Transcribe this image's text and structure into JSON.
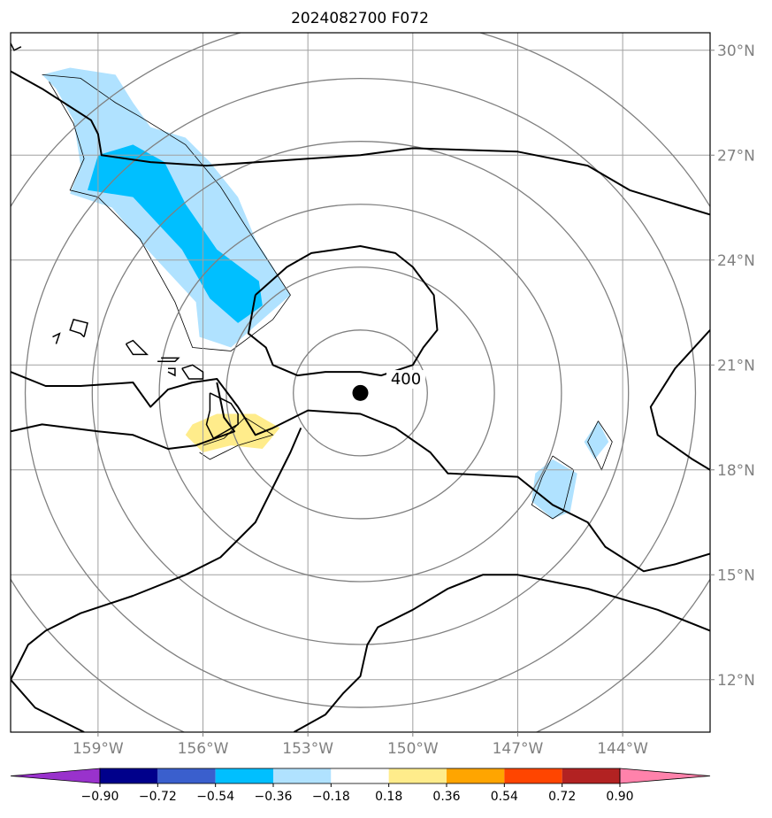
{
  "chart_data": {
    "type": "contour map",
    "title": "2024082700 F072",
    "xlim": [
      -161.5,
      -141.5
    ],
    "ylim": [
      10.5,
      30.5
    ],
    "grid": true,
    "x_ticks": [
      {
        "value": -159,
        "label": "159°W"
      },
      {
        "value": -156,
        "label": "156°W"
      },
      {
        "value": -153,
        "label": "153°W"
      },
      {
        "value": -150,
        "label": "150°W"
      },
      {
        "value": -147,
        "label": "147°W"
      },
      {
        "value": -144,
        "label": "144°W"
      }
    ],
    "y_ticks": [
      {
        "value": 12,
        "label": "12°N"
      },
      {
        "value": 15,
        "label": "15°N"
      },
      {
        "value": 18,
        "label": "18°N"
      },
      {
        "value": 21,
        "label": "21°N"
      },
      {
        "value": 24,
        "label": "24°N"
      },
      {
        "value": 27,
        "label": "27°N"
      },
      {
        "value": 30,
        "label": "30°N"
      }
    ],
    "center_marker": {
      "lon": -151.5,
      "lat": 20.2
    },
    "contour_label": {
      "text": "400",
      "lon": -150.5,
      "lat": 20.6
    },
    "colorbar": {
      "orientation": "horizontal",
      "extend": "both",
      "boundaries": [
        -0.9,
        -0.72,
        -0.54,
        -0.36,
        -0.18,
        0.18,
        0.36,
        0.54,
        0.72,
        0.9
      ],
      "tick_labels": [
        "−0.90",
        "−0.72",
        "−0.54",
        "−0.36",
        "−0.18",
        "0.18",
        "0.36",
        "0.54",
        "0.72",
        "0.90"
      ],
      "colors": [
        "#9932CC",
        "#00008B",
        "#3A5FCD",
        "#00BFFF",
        "#B0E2FF",
        "#FFFFFF",
        "#FFEC8B",
        "#FFA500",
        "#FF4500",
        "#B22222",
        "#FF82AB"
      ]
    },
    "range_rings_km": [
      200,
      400,
      600,
      800,
      1000,
      1200
    ],
    "filled_regions": [
      {
        "name": "negative-band-northwest",
        "level": "-0.36..-0.18",
        "color": "#B0E2FF",
        "points": [
          [
            -160.6,
            29.3
          ],
          [
            -159.8,
            29.5
          ],
          [
            -158.5,
            29.3
          ],
          [
            -158.0,
            28.5
          ],
          [
            -157.5,
            27.8
          ],
          [
            -156.5,
            27.5
          ],
          [
            -155.8,
            26.8
          ],
          [
            -155.0,
            25.8
          ],
          [
            -154.5,
            24.6
          ],
          [
            -154.0,
            23.8
          ],
          [
            -153.5,
            23.0
          ],
          [
            -154.3,
            22.3
          ],
          [
            -155.2,
            21.5
          ],
          [
            -156.1,
            21.8
          ],
          [
            -156.2,
            22.8
          ],
          [
            -157.5,
            24.2
          ],
          [
            -158.6,
            25.5
          ],
          [
            -159.8,
            25.9
          ],
          [
            -159.5,
            26.7
          ],
          [
            -159.7,
            28.0
          ],
          [
            -160.2,
            28.9
          ]
        ]
      },
      {
        "name": "negative-core-northwest",
        "level": "-0.54..-0.36",
        "color": "#00BFFF",
        "points": [
          [
            -159.0,
            27.0
          ],
          [
            -158.0,
            27.3
          ],
          [
            -157.1,
            26.8
          ],
          [
            -156.5,
            25.6
          ],
          [
            -155.6,
            24.3
          ],
          [
            -154.4,
            23.4
          ],
          [
            -154.3,
            22.7
          ],
          [
            -155.0,
            22.2
          ],
          [
            -155.8,
            22.9
          ],
          [
            -156.6,
            24.3
          ],
          [
            -158.0,
            25.8
          ],
          [
            -159.3,
            26.0
          ]
        ]
      },
      {
        "name": "negative-patch-east-small",
        "level": "-0.36..-0.18",
        "color": "#B0E2FF",
        "points": [
          [
            -144.7,
            19.4
          ],
          [
            -144.4,
            18.8
          ],
          [
            -144.8,
            18.3
          ],
          [
            -145.1,
            18.8
          ]
        ]
      },
      {
        "name": "negative-patch-east",
        "level": "-0.36..-0.18",
        "color": "#B0E2FF",
        "points": [
          [
            -146.0,
            18.3
          ],
          [
            -145.3,
            17.9
          ],
          [
            -145.5,
            16.8
          ],
          [
            -146.0,
            16.6
          ],
          [
            -146.6,
            17.1
          ],
          [
            -146.5,
            17.9
          ]
        ]
      },
      {
        "name": "positive-patch-hawaii",
        "level": "0.18..0.36",
        "color": "#FFEC8B",
        "points": [
          [
            -156.3,
            19.3
          ],
          [
            -155.6,
            19.6
          ],
          [
            -154.5,
            19.6
          ],
          [
            -153.8,
            19.2
          ],
          [
            -154.3,
            18.6
          ],
          [
            -155.2,
            18.7
          ],
          [
            -156.0,
            18.5
          ],
          [
            -156.5,
            19.0
          ]
        ]
      }
    ],
    "thin_contours": [
      [
        [
          -160.6,
          29.3
        ],
        [
          -159.5,
          29.2
        ],
        [
          -158.5,
          28.5
        ],
        [
          -157.8,
          28.1
        ],
        [
          -156.5,
          27.3
        ],
        [
          -155.5,
          26.1
        ],
        [
          -154.8,
          25.0
        ],
        [
          -153.5,
          23.0
        ],
        [
          -154.0,
          22.3
        ],
        [
          -155.2,
          21.4
        ],
        [
          -156.3,
          21.5
        ],
        [
          -156.8,
          22.8
        ],
        [
          -157.8,
          24.6
        ],
        [
          -159.0,
          25.8
        ],
        [
          -159.8,
          26.0
        ],
        [
          -159.4,
          26.9
        ],
        [
          -159.7,
          27.9
        ],
        [
          -160.4,
          29.1
        ]
      ],
      [
        [
          -144.7,
          19.4
        ],
        [
          -144.3,
          18.8
        ],
        [
          -144.6,
          18.0
        ],
        [
          -145.0,
          18.8
        ],
        [
          -144.7,
          19.4
        ]
      ],
      [
        [
          -146.0,
          18.4
        ],
        [
          -145.4,
          18.0
        ],
        [
          -145.7,
          16.8
        ],
        [
          -146.0,
          16.6
        ],
        [
          -146.6,
          17.0
        ],
        [
          -146.3,
          17.8
        ],
        [
          -146.0,
          18.4
        ]
      ],
      [
        [
          -156.0,
          18.7
        ],
        [
          -155.4,
          18.9
        ],
        [
          -154.8,
          19.5
        ],
        [
          -154.0,
          19.0
        ],
        [
          -155.0,
          18.7
        ],
        [
          -155.8,
          18.3
        ],
        [
          -156.1,
          18.5
        ]
      ]
    ],
    "height_contours": [
      [
        [
          -154.5,
          23.0
        ],
        [
          -153.6,
          23.8
        ],
        [
          -152.9,
          24.2
        ],
        [
          -151.5,
          24.4
        ],
        [
          -150.5,
          24.2
        ],
        [
          -150.0,
          23.8
        ],
        [
          -149.4,
          23.0
        ],
        [
          -149.3,
          22.0
        ],
        [
          -149.7,
          21.5
        ],
        [
          -150.0,
          21.0
        ],
        [
          -150.9,
          20.7
        ],
        [
          -151.5,
          20.8
        ],
        [
          -152.5,
          20.8
        ],
        [
          -153.3,
          20.7
        ],
        [
          -154.0,
          21.0
        ],
        [
          -154.2,
          21.5
        ],
        [
          -154.7,
          21.9
        ],
        [
          -154.5,
          23.0
        ]
      ],
      [
        [
          -161.5,
          29.4
        ],
        [
          -160.6,
          28.9
        ],
        [
          -159.2,
          28.0
        ],
        [
          -159.0,
          27.6
        ],
        [
          -158.9,
          27.0
        ],
        [
          -157.5,
          26.8
        ],
        [
          -155.9,
          26.7
        ],
        [
          -153.0,
          26.9
        ],
        [
          -151.5,
          27.0
        ],
        [
          -150.0,
          27.2
        ],
        [
          -147.0,
          27.1
        ],
        [
          -145.0,
          26.7
        ],
        [
          -143.8,
          26.0
        ],
        [
          -142.5,
          25.6
        ],
        [
          -141.5,
          25.3
        ]
      ],
      [
        [
          -161.5,
          20.8
        ],
        [
          -160.5,
          20.4
        ],
        [
          -159.5,
          20.4
        ],
        [
          -158.0,
          20.5
        ],
        [
          -157.5,
          19.8
        ],
        [
          -157.0,
          20.3
        ],
        [
          -156.3,
          20.5
        ],
        [
          -155.6,
          20.6
        ],
        [
          -155.0,
          19.8
        ],
        [
          -154.5,
          19.0
        ],
        [
          -154.0,
          19.2
        ],
        [
          -153.0,
          19.7
        ],
        [
          -151.5,
          19.6
        ],
        [
          -150.5,
          19.2
        ],
        [
          -149.5,
          18.5
        ],
        [
          -149.0,
          17.9
        ],
        [
          -147.0,
          17.8
        ],
        [
          -146.0,
          17.0
        ],
        [
          -145.0,
          16.5
        ],
        [
          -144.5,
          15.8
        ],
        [
          -143.4,
          15.1
        ],
        [
          -142.5,
          15.3
        ],
        [
          -141.5,
          15.6
        ]
      ],
      [
        [
          -161.5,
          19.1
        ],
        [
          -160.6,
          19.3
        ],
        [
          -159.0,
          19.1
        ],
        [
          -158.0,
          19.0
        ],
        [
          -157.0,
          18.6
        ],
        [
          -156.2,
          18.7
        ],
        [
          -155.1,
          19.1
        ],
        [
          -155.4,
          19.5
        ],
        [
          -155.6,
          20.5
        ]
      ],
      [
        [
          -161.5,
          12.0
        ],
        [
          -161.0,
          13.0
        ],
        [
          -160.5,
          13.4
        ],
        [
          -159.5,
          13.9
        ],
        [
          -158.0,
          14.4
        ],
        [
          -156.5,
          15.0
        ],
        [
          -155.5,
          15.5
        ],
        [
          -154.5,
          16.5
        ],
        [
          -154.0,
          17.5
        ],
        [
          -153.5,
          18.5
        ],
        [
          -153.2,
          19.2
        ]
      ],
      [
        [
          -161.5,
          12.0
        ],
        [
          -160.8,
          11.2
        ],
        [
          -160.0,
          10.8
        ],
        [
          -159.4,
          10.5
        ]
      ],
      [
        [
          -153.4,
          10.5
        ],
        [
          -152.5,
          11.0
        ],
        [
          -152.0,
          11.6
        ],
        [
          -151.5,
          12.1
        ],
        [
          -151.3,
          13.0
        ],
        [
          -151.0,
          13.5
        ],
        [
          -150.0,
          14.0
        ],
        [
          -149.0,
          14.6
        ],
        [
          -148.0,
          15.0
        ],
        [
          -147.0,
          15.0
        ],
        [
          -146.0,
          14.8
        ],
        [
          -145.0,
          14.6
        ],
        [
          -144.0,
          14.3
        ],
        [
          -143.0,
          14.0
        ],
        [
          -141.5,
          13.4
        ]
      ],
      [
        [
          -141.5,
          22.0
        ],
        [
          -142.5,
          20.9
        ],
        [
          -143.2,
          19.8
        ],
        [
          -143.0,
          19.0
        ],
        [
          -142.0,
          18.3
        ],
        [
          -141.5,
          18.0
        ]
      ]
    ],
    "coastlines": [
      [
        [
          -161.5,
          30.2
        ],
        [
          -161.4,
          30.0
        ],
        [
          -161.2,
          30.1
        ]
      ],
      [
        [
          -159.4,
          21.8
        ],
        [
          -159.3,
          22.2
        ],
        [
          -159.7,
          22.3
        ],
        [
          -159.8,
          22.0
        ],
        [
          -159.5,
          21.9
        ],
        [
          -159.4,
          21.8
        ]
      ],
      [
        [
          -160.3,
          21.8
        ],
        [
          -160.1,
          21.9
        ],
        [
          -160.2,
          21.6
        ]
      ],
      [
        [
          -158.2,
          21.6
        ],
        [
          -158.0,
          21.7
        ],
        [
          -157.8,
          21.5
        ],
        [
          -157.6,
          21.3
        ],
        [
          -158.0,
          21.3
        ],
        [
          -158.2,
          21.6
        ]
      ],
      [
        [
          -157.2,
          21.2
        ],
        [
          -156.7,
          21.2
        ],
        [
          -156.8,
          21.1
        ],
        [
          -157.3,
          21.1
        ]
      ],
      [
        [
          -157.0,
          20.9
        ],
        [
          -156.8,
          20.9
        ],
        [
          -156.8,
          20.7
        ],
        [
          -157.0,
          20.8
        ]
      ],
      [
        [
          -156.6,
          20.9
        ],
        [
          -156.3,
          21.0
        ],
        [
          -156.0,
          20.8
        ],
        [
          -156.0,
          20.6
        ],
        [
          -156.4,
          20.6
        ],
        [
          -156.6,
          20.9
        ]
      ],
      [
        [
          -155.8,
          20.2
        ],
        [
          -155.2,
          19.9
        ],
        [
          -155.0,
          19.6
        ],
        [
          -155.0,
          19.3
        ],
        [
          -155.7,
          18.9
        ],
        [
          -155.9,
          19.3
        ],
        [
          -155.8,
          19.7
        ],
        [
          -155.8,
          20.2
        ]
      ]
    ]
  }
}
